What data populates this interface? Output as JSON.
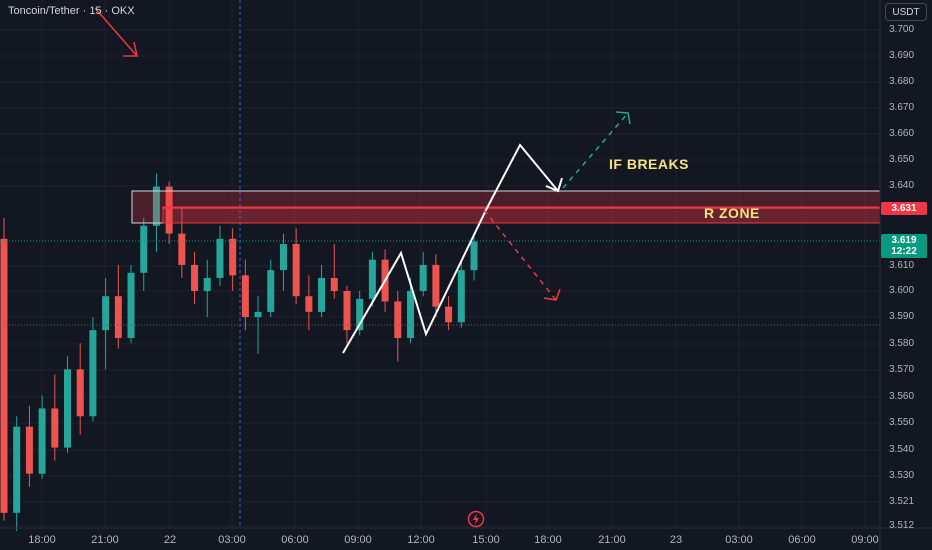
{
  "header": {
    "symbol": "Toncoin/Tether · 15 · OKX",
    "currency": "USDT"
  },
  "price_axis": {
    "labels": [
      "3.700",
      "3.690",
      "3.680",
      "3.670",
      "3.660",
      "3.650",
      "3.640",
      "3.610",
      "3.600",
      "3.590",
      "3.580",
      "3.570",
      "3.560",
      "3.550",
      "3.540",
      "3.530",
      "3.521",
      "3.512"
    ],
    "resistance_tag": "3.631",
    "last_price": "3.619",
    "countdown": "12:22"
  },
  "time_axis": {
    "labels": [
      "18:00",
      "21:00",
      "22",
      "03:00",
      "06:00",
      "09:00",
      "12:00",
      "15:00",
      "18:00",
      "21:00",
      "23",
      "03:00",
      "06:00",
      "09:00"
    ]
  },
  "annotations": {
    "if_breaks": "IF BREAKS",
    "r_zone": "R ZONE"
  },
  "colors": {
    "background": "#131722",
    "up": "#26a69a",
    "down": "#ef5350",
    "zone": "#f23645",
    "annotation": "#f7e27d"
  },
  "icons": {
    "flash": "flash-icon",
    "arrow": "arrow-icon"
  },
  "chart_data": {
    "type": "candlestick",
    "resistance_zone": [
      3.626,
      3.638
    ],
    "resistance_level": 3.631,
    "last_price": 3.619,
    "ylim": [
      3.512,
      3.7
    ],
    "ohlc": [
      [
        3.62,
        3.628,
        3.512,
        3.515
      ],
      [
        3.515,
        3.552,
        3.508,
        3.548
      ],
      [
        3.548,
        3.556,
        3.525,
        3.53
      ],
      [
        3.53,
        3.56,
        3.528,
        3.555
      ],
      [
        3.555,
        3.568,
        3.535,
        3.54
      ],
      [
        3.54,
        3.575,
        3.538,
        3.57
      ],
      [
        3.57,
        3.58,
        3.545,
        3.552
      ],
      [
        3.552,
        3.59,
        3.55,
        3.585
      ],
      [
        3.585,
        3.605,
        3.57,
        3.598
      ],
      [
        3.598,
        3.61,
        3.578,
        3.582
      ],
      [
        3.582,
        3.61,
        3.58,
        3.607
      ],
      [
        3.607,
        3.628,
        3.6,
        3.625
      ],
      [
        3.625,
        3.645,
        3.615,
        3.64
      ],
      [
        3.64,
        3.642,
        3.618,
        3.622
      ],
      [
        3.622,
        3.632,
        3.605,
        3.61
      ],
      [
        3.61,
        3.615,
        3.595,
        3.6
      ],
      [
        3.6,
        3.612,
        3.59,
        3.605
      ],
      [
        3.605,
        3.625,
        3.602,
        3.62
      ],
      [
        3.62,
        3.624,
        3.6,
        3.606
      ],
      [
        3.606,
        3.612,
        3.585,
        3.59
      ],
      [
        3.59,
        3.598,
        3.576,
        3.592
      ],
      [
        3.592,
        3.612,
        3.59,
        3.608
      ],
      [
        3.608,
        3.622,
        3.6,
        3.618
      ],
      [
        3.618,
        3.624,
        3.595,
        3.598
      ],
      [
        3.598,
        3.606,
        3.585,
        3.592
      ],
      [
        3.592,
        3.61,
        3.59,
        3.605
      ],
      [
        3.605,
        3.618,
        3.597,
        3.6
      ],
      [
        3.6,
        3.602,
        3.58,
        3.585
      ],
      [
        3.585,
        3.6,
        3.583,
        3.597
      ],
      [
        3.597,
        3.615,
        3.594,
        3.612
      ],
      [
        3.612,
        3.616,
        3.592,
        3.596
      ],
      [
        3.596,
        3.6,
        3.573,
        3.582
      ],
      [
        3.582,
        3.605,
        3.58,
        3.6
      ],
      [
        3.6,
        3.615,
        3.598,
        3.61
      ],
      [
        3.61,
        3.614,
        3.59,
        3.594
      ],
      [
        3.594,
        3.598,
        3.585,
        3.588
      ],
      [
        3.588,
        3.612,
        3.586,
        3.608
      ],
      [
        3.608,
        3.622,
        3.604,
        3.619
      ]
    ]
  }
}
